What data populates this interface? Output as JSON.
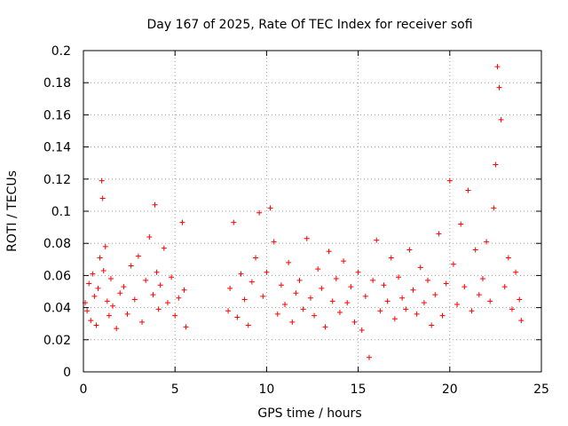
{
  "chart_data": {
    "type": "scatter",
    "title": "Day 167 of 2025, Rate Of TEC Index for receiver sofi",
    "xlabel": "GPS time / hours",
    "ylabel": "ROTI / TECUs",
    "xlim": [
      0,
      25
    ],
    "ylim": [
      0,
      0.2
    ],
    "xticks": [
      0,
      5,
      10,
      15,
      20,
      25
    ],
    "yticks": [
      0,
      0.02,
      0.04,
      0.06,
      0.08,
      0.1,
      0.12,
      0.14,
      0.16,
      0.18,
      0.2
    ],
    "xtick_labels": [
      "0",
      "5",
      "10",
      "15",
      "20",
      "25"
    ],
    "ytick_labels": [
      "0",
      "0.02",
      "0.04",
      "0.06",
      "0.08",
      "0.1",
      "0.12",
      "0.14",
      "0.16",
      "0.18",
      "0.2"
    ],
    "grid": true,
    "marker": "+",
    "color": "#ff0000",
    "series": [
      {
        "name": "sofi",
        "x": [
          0.1,
          0.2,
          0.3,
          0.4,
          0.5,
          0.6,
          0.7,
          0.8,
          0.9,
          1.0,
          1.05,
          1.1,
          1.2,
          1.3,
          1.4,
          1.5,
          1.6,
          1.8,
          2.0,
          2.2,
          2.4,
          2.6,
          2.8,
          3.0,
          3.2,
          3.4,
          3.6,
          3.8,
          3.9,
          4.0,
          4.1,
          4.2,
          4.4,
          4.6,
          4.8,
          5.0,
          5.2,
          5.4,
          5.5,
          5.6,
          7.9,
          8.0,
          8.2,
          8.4,
          8.6,
          8.8,
          9.0,
          9.2,
          9.4,
          9.6,
          9.8,
          10.0,
          10.2,
          10.4,
          10.6,
          10.8,
          11.0,
          11.2,
          11.4,
          11.6,
          11.8,
          12.0,
          12.2,
          12.4,
          12.6,
          12.8,
          13.0,
          13.2,
          13.4,
          13.6,
          13.8,
          14.0,
          14.2,
          14.4,
          14.6,
          14.8,
          15.0,
          15.2,
          15.4,
          15.6,
          15.8,
          16.0,
          16.2,
          16.4,
          16.6,
          16.8,
          17.0,
          17.2,
          17.4,
          17.6,
          17.8,
          18.0,
          18.2,
          18.4,
          18.6,
          18.8,
          19.0,
          19.2,
          19.4,
          19.6,
          19.8,
          20.0,
          20.2,
          20.4,
          20.6,
          20.8,
          21.0,
          21.2,
          21.4,
          21.6,
          21.8,
          22.0,
          22.2,
          22.4,
          22.5,
          22.6,
          22.7,
          22.8,
          23.0,
          23.2,
          23.4,
          23.6,
          23.8,
          23.9
        ],
        "y": [
          0.043,
          0.038,
          0.055,
          0.032,
          0.061,
          0.047,
          0.029,
          0.052,
          0.071,
          0.119,
          0.108,
          0.063,
          0.078,
          0.044,
          0.035,
          0.058,
          0.041,
          0.027,
          0.049,
          0.053,
          0.036,
          0.066,
          0.045,
          0.072,
          0.031,
          0.057,
          0.084,
          0.048,
          0.104,
          0.062,
          0.039,
          0.054,
          0.077,
          0.043,
          0.059,
          0.035,
          0.046,
          0.093,
          0.051,
          0.028,
          0.038,
          0.052,
          0.093,
          0.034,
          0.061,
          0.045,
          0.029,
          0.056,
          0.071,
          0.099,
          0.047,
          0.062,
          0.102,
          0.081,
          0.036,
          0.054,
          0.042,
          0.068,
          0.031,
          0.049,
          0.057,
          0.039,
          0.083,
          0.046,
          0.035,
          0.064,
          0.052,
          0.028,
          0.075,
          0.044,
          0.058,
          0.037,
          0.069,
          0.043,
          0.053,
          0.031,
          0.062,
          0.026,
          0.047,
          0.009,
          0.057,
          0.082,
          0.038,
          0.054,
          0.044,
          0.071,
          0.033,
          0.059,
          0.046,
          0.039,
          0.076,
          0.051,
          0.036,
          0.065,
          0.043,
          0.057,
          0.029,
          0.048,
          0.086,
          0.035,
          0.055,
          0.119,
          0.067,
          0.042,
          0.092,
          0.053,
          0.113,
          0.038,
          0.076,
          0.048,
          0.058,
          0.081,
          0.044,
          0.102,
          0.129,
          0.19,
          0.177,
          0.157,
          0.053,
          0.071,
          0.039,
          0.062,
          0.045,
          0.032
        ]
      }
    ]
  }
}
